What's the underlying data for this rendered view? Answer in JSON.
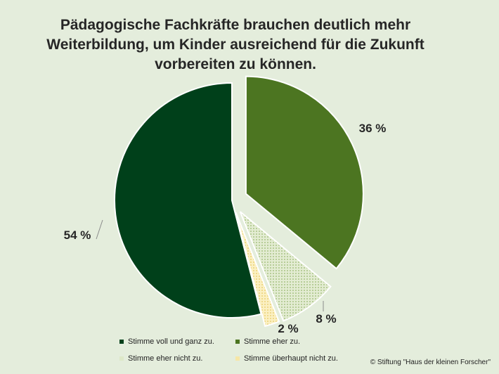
{
  "chart_data": {
    "type": "pie",
    "title": "Pädagogische Fachkräfte brauchen deutlich mehr Weiterbildung, um Kinder ausreichend für die Zukunft vorbereiten zu können.",
    "categories": [
      "Stimme voll und ganz zu.",
      "Stimme eher zu.",
      "Stimme eher nicht zu.",
      "Stimme überhaupt nicht zu."
    ],
    "values": [
      54,
      36,
      8,
      2
    ],
    "labels": [
      "54 %",
      "36 %",
      "8 %",
      "2 %"
    ],
    "colors": [
      "#00401a",
      "#4c7521",
      "#dde8c8",
      "#f6e6a6"
    ],
    "legend_position": "bottom"
  },
  "copyright": "© Stiftung \"Haus der kleinen Forscher\""
}
